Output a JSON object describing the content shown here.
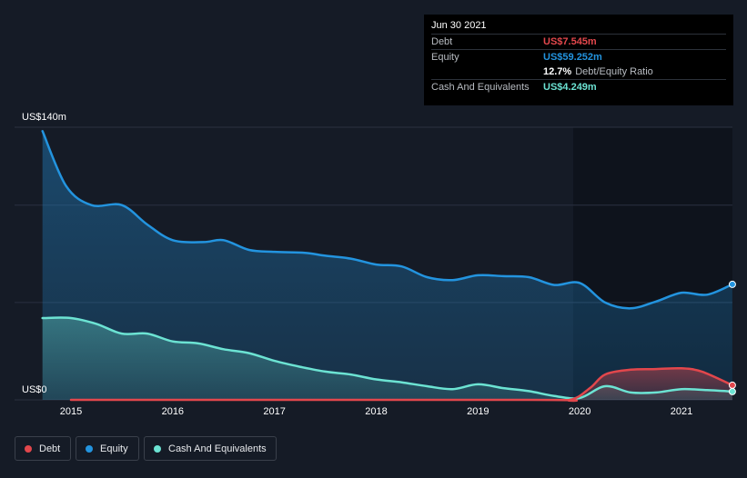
{
  "tooltip": {
    "date": "Jun 30 2021",
    "debt_label": "Debt",
    "debt_value": "US$7.545m",
    "equity_label": "Equity",
    "equity_value": "US$59.252m",
    "ratio_value": "12.7%",
    "ratio_label": "Debt/Equity Ratio",
    "cash_label": "Cash And Equivalents",
    "cash_value": "US$4.249m"
  },
  "legend": {
    "debt": "Debt",
    "equity": "Equity",
    "cash": "Cash And Equivalents"
  },
  "colors": {
    "debt": "#e2474c",
    "equity": "#2394df",
    "cash": "#6ce3d3",
    "background": "#151b26"
  },
  "chart_data": {
    "type": "area",
    "title": "",
    "xlabel": "",
    "ylabel": "",
    "y_top_label": "US$140m",
    "y_bottom_label": "US$0",
    "ylim": [
      0,
      140
    ],
    "xlim": [
      2014.72,
      2021.5
    ],
    "x_ticks": [
      "2015",
      "2016",
      "2017",
      "2018",
      "2019",
      "2020",
      "2021"
    ],
    "series": [
      {
        "name": "Equity",
        "points": [
          [
            2014.72,
            138
          ],
          [
            2014.95,
            110
          ],
          [
            2015.2,
            100
          ],
          [
            2015.5,
            100
          ],
          [
            2015.75,
            90
          ],
          [
            2016.0,
            82
          ],
          [
            2016.3,
            81
          ],
          [
            2016.5,
            82
          ],
          [
            2016.75,
            77
          ],
          [
            2017.0,
            76
          ],
          [
            2017.3,
            75.5
          ],
          [
            2017.5,
            74
          ],
          [
            2017.75,
            72.5
          ],
          [
            2018.0,
            69.5
          ],
          [
            2018.25,
            68.5
          ],
          [
            2018.5,
            63
          ],
          [
            2018.75,
            61.5
          ],
          [
            2019.0,
            64
          ],
          [
            2019.25,
            63.5
          ],
          [
            2019.5,
            63
          ],
          [
            2019.75,
            59
          ],
          [
            2020.0,
            60
          ],
          [
            2020.25,
            50
          ],
          [
            2020.5,
            47
          ],
          [
            2020.75,
            50.5
          ],
          [
            2021.0,
            55
          ],
          [
            2021.25,
            54
          ],
          [
            2021.5,
            59.3
          ]
        ]
      },
      {
        "name": "Cash And Equivalents",
        "points": [
          [
            2014.72,
            42
          ],
          [
            2015.0,
            42
          ],
          [
            2015.25,
            39
          ],
          [
            2015.5,
            34
          ],
          [
            2015.75,
            34
          ],
          [
            2016.0,
            30
          ],
          [
            2016.25,
            29
          ],
          [
            2016.5,
            26
          ],
          [
            2016.75,
            24
          ],
          [
            2017.0,
            20
          ],
          [
            2017.25,
            17
          ],
          [
            2017.5,
            14.5
          ],
          [
            2017.75,
            13
          ],
          [
            2018.0,
            10.5
          ],
          [
            2018.25,
            9
          ],
          [
            2018.5,
            7
          ],
          [
            2018.75,
            5.5
          ],
          [
            2019.0,
            8
          ],
          [
            2019.25,
            6
          ],
          [
            2019.5,
            4.5
          ],
          [
            2019.75,
            2
          ],
          [
            2020.0,
            1
          ],
          [
            2020.25,
            7
          ],
          [
            2020.5,
            3.8
          ],
          [
            2020.75,
            3.8
          ],
          [
            2021.0,
            5.5
          ],
          [
            2021.25,
            5
          ],
          [
            2021.5,
            4.25
          ]
        ]
      },
      {
        "name": "Debt",
        "points": [
          [
            2015.0,
            0
          ],
          [
            2019.5,
            0
          ],
          [
            2019.9,
            0
          ],
          [
            2020.1,
            6
          ],
          [
            2020.25,
            13
          ],
          [
            2020.5,
            15.5
          ],
          [
            2020.75,
            15.8
          ],
          [
            2021.0,
            16.2
          ],
          [
            2021.2,
            14.5
          ],
          [
            2021.5,
            7.5
          ]
        ]
      }
    ]
  }
}
